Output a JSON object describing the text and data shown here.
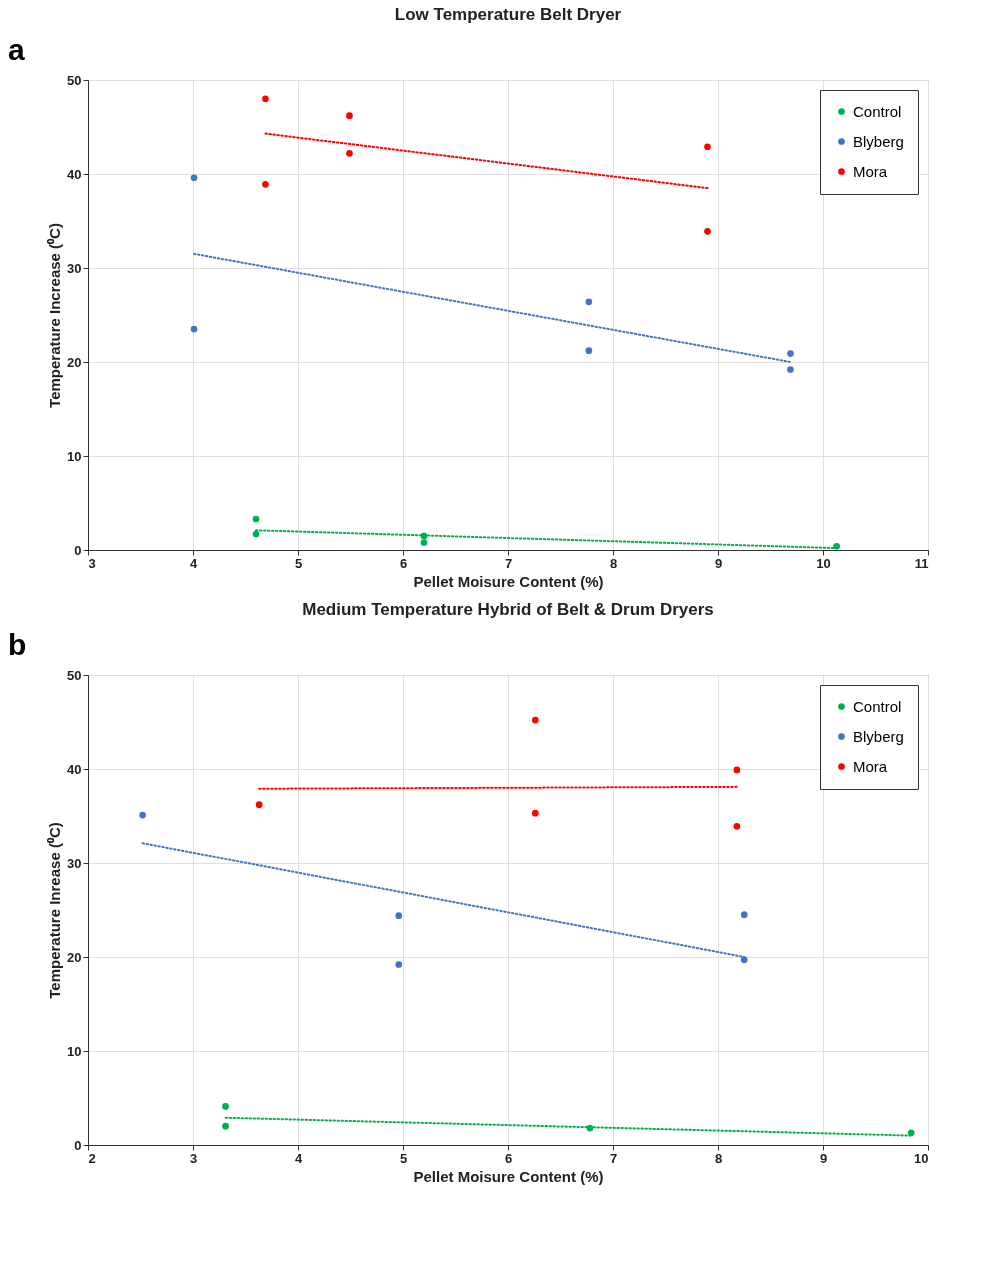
{
  "chart_data": [
    {
      "type": "scatter",
      "title": "Low Temperature Belt Dryer",
      "xlabel": "Pellet Moisure Content (%)",
      "ylabel": "Temperature Increase (⁰C)",
      "annotations": [
        "a"
      ],
      "xlim": [
        3,
        11
      ],
      "xticks": [
        3,
        4,
        5,
        6,
        7,
        8,
        9,
        10,
        11
      ],
      "ylim": [
        0,
        50
      ],
      "yticks": [
        0,
        10,
        20,
        30,
        40,
        50
      ],
      "grid": true,
      "legend": "top right",
      "marker": "circle",
      "series": [
        {
          "name": "Control",
          "color": "#00b050",
          "x": [
            4.6,
            4.6,
            6.2,
            6.2,
            10.13
          ],
          "values": [
            3.3,
            1.7,
            1.5,
            0.8,
            0.4
          ]
        },
        {
          "name": "Blyberg",
          "color": "#4472c4",
          "x": [
            4.01,
            4.01,
            7.77,
            7.77,
            9.69,
            9.69
          ],
          "values": [
            39.6,
            23.5,
            26.4,
            21.2,
            20.9,
            19.2
          ]
        },
        {
          "name": "Mora",
          "color": "#ff0000",
          "x": [
            4.69,
            4.69,
            5.49,
            5.49,
            8.9,
            8.9
          ],
          "values": [
            48.0,
            38.9,
            46.2,
            42.2,
            42.9,
            33.9
          ]
        },
        {
          "type": "line",
          "marker": "none",
          "color": "#00b050",
          "line_style": "dotted",
          "x": [
            4.6,
            10.13
          ],
          "values": [
            2.1,
            0.2
          ]
        },
        {
          "type": "line",
          "marker": "none",
          "color": "#4472c4",
          "line_style": "dotted",
          "x": [
            4.01,
            9.69
          ],
          "values": [
            31.5,
            20.0
          ]
        },
        {
          "type": "line",
          "marker": "none",
          "color": "#ff0000",
          "line_style": "dotted",
          "x": [
            4.69,
            8.9
          ],
          "values": [
            44.3,
            38.5
          ]
        }
      ]
    },
    {
      "type": "scatter",
      "title": "Medium Temperature Hybrid of Belt & Drum Dryers",
      "xlabel": "Pellet Moisure Content (%)",
      "ylabel": "Temperature Inrease (⁰C)",
      "annotations": [
        "b"
      ],
      "xlim": [
        2,
        10
      ],
      "xticks": [
        2,
        3,
        4,
        5,
        6,
        7,
        8,
        9,
        10
      ],
      "ylim": [
        0,
        50
      ],
      "yticks": [
        0,
        10,
        20,
        30,
        40,
        50
      ],
      "grid": true,
      "legend": "top right",
      "marker": "circle",
      "series": [
        {
          "name": "Control",
          "color": "#00b050",
          "x": [
            3.31,
            3.31,
            6.78,
            9.84
          ],
          "values": [
            4.1,
            2.0,
            1.8,
            1.3
          ]
        },
        {
          "name": "Blyberg",
          "color": "#4472c4",
          "x": [
            2.52,
            4.96,
            4.96,
            8.25,
            8.25
          ],
          "values": [
            35.1,
            24.4,
            19.2,
            24.5,
            19.7
          ]
        },
        {
          "name": "Mora",
          "color": "#ff0000",
          "x": [
            3.63,
            6.26,
            6.26,
            8.18,
            8.18
          ],
          "values": [
            36.2,
            45.2,
            35.3,
            39.9,
            33.9
          ]
        },
        {
          "type": "line",
          "marker": "none",
          "color": "#00b050",
          "line_style": "dotted",
          "x": [
            3.31,
            9.84
          ],
          "values": [
            2.9,
            1.0
          ]
        },
        {
          "type": "line",
          "marker": "none",
          "color": "#4472c4",
          "line_style": "dotted",
          "x": [
            2.52,
            8.25
          ],
          "values": [
            32.1,
            20.0
          ]
        },
        {
          "type": "line",
          "marker": "none",
          "color": "#ff0000",
          "line_style": "dotted",
          "x": [
            3.63,
            8.18
          ],
          "values": [
            37.9,
            38.1
          ]
        }
      ]
    }
  ]
}
